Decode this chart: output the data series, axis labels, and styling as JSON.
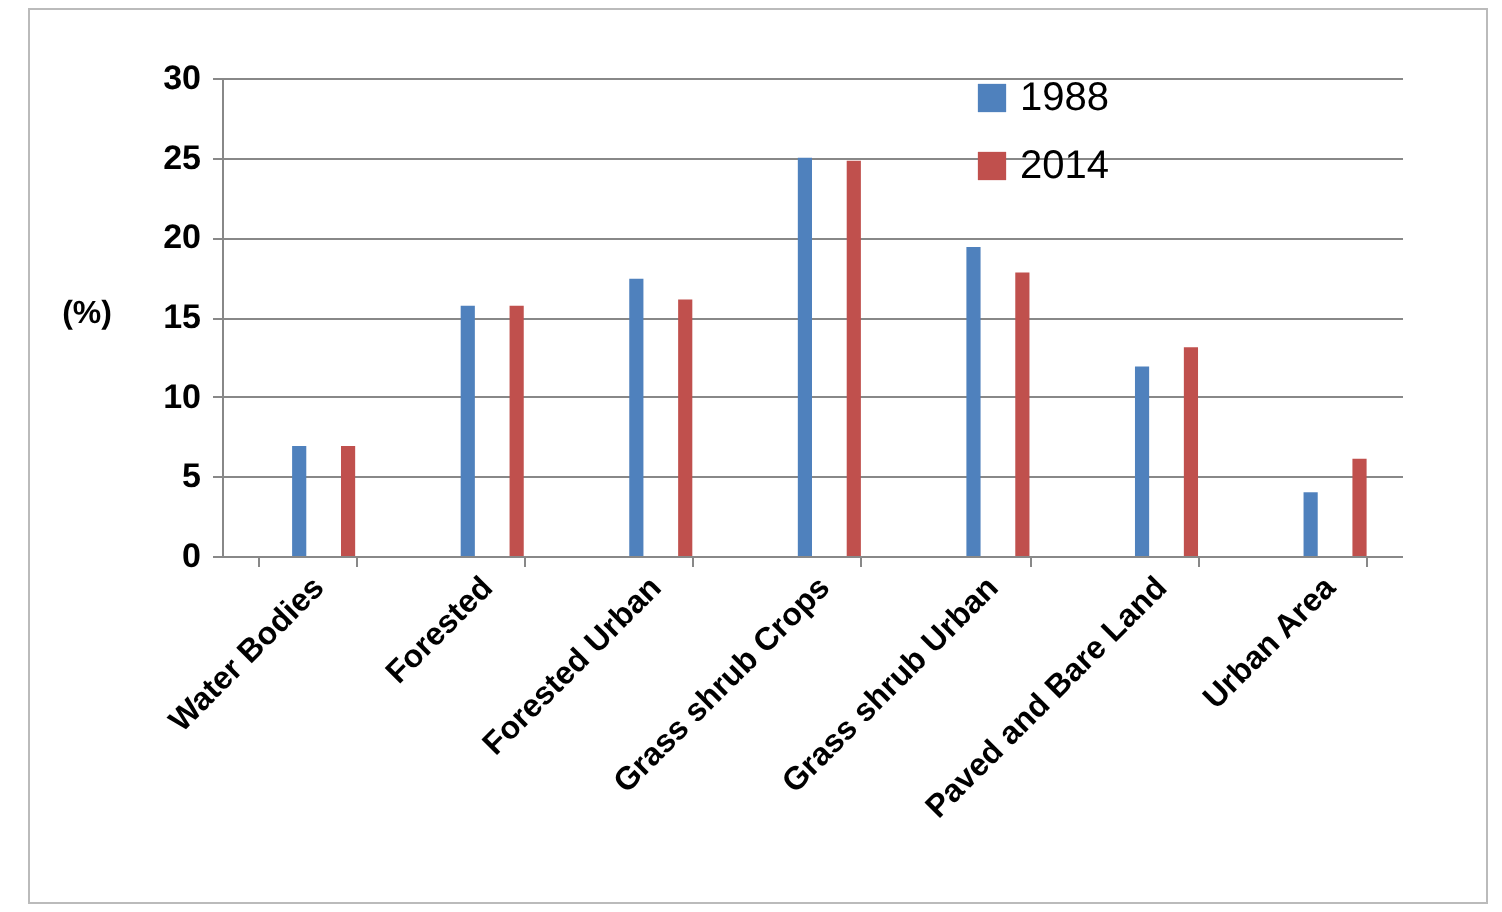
{
  "chart_data": {
    "type": "bar",
    "ylabel": "(%)",
    "categories": [
      "Water Bodies",
      "Forested",
      "Forested Urban",
      "Grass shrub Crops",
      "Grass shrub Urban",
      "Paved and Bare Land",
      "Urban Area"
    ],
    "series": [
      {
        "name": "1988",
        "color": "#4f81bd",
        "values": [
          6.9,
          15.7,
          17.4,
          25.0,
          19.4,
          11.9,
          4.0
        ]
      },
      {
        "name": "2014",
        "color": "#c0504d",
        "values": [
          6.9,
          15.7,
          16.1,
          24.8,
          17.8,
          13.1,
          6.1
        ]
      }
    ],
    "ylim": [
      0,
      30
    ],
    "yticks": [
      0,
      5,
      10,
      15,
      20,
      25,
      30
    ],
    "grid": "y",
    "legend": "top right"
  }
}
